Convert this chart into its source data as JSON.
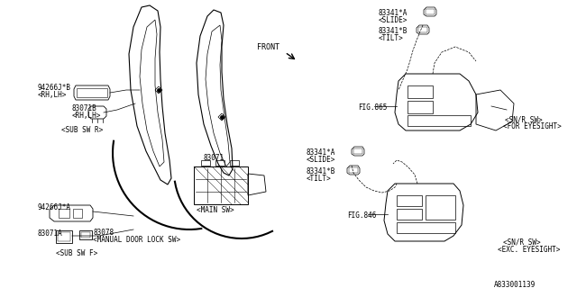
{
  "bg_color": "#ffffff",
  "line_color": "#000000",
  "font_size": 5.5,
  "ref_code": "A833001139",
  "labels": {
    "front": "FRONT",
    "part_main": "83071",
    "main_sw": "<MAIN SW>",
    "part_94266jb": "94266J*B",
    "part_rhlh_b": "<RH,LH>",
    "part_83071b": "83071B",
    "part_rhlh": "<RH,LH>",
    "sub_sw_r": "<SUB SW R>",
    "part_94266ja": "94266J*A",
    "part_83071a": "83071A",
    "part_83078": "83078",
    "manual_door": "<MANUAL DOOR LOCK SW>",
    "sub_sw_f": "<SUB SW F>",
    "slide_a1": "83341*A",
    "slide_1": "<SLIDE>",
    "tilt_b1": "83341*B",
    "tilt_1": "<TILT>",
    "slide_a2": "83341*A",
    "slide_2": "<SLIDE>",
    "tilt_b2": "83341*B",
    "tilt_2": "<TILT>",
    "fig865": "FIG.865",
    "fig846": "FIG.846",
    "snr_eyesight": "<SN/R SW>",
    "for_eyesight": "<FOR EYESIGHT>",
    "snr_exc": "<SN/R SW>",
    "exc_eyesight": "<EXC. EYESIGHT>"
  }
}
